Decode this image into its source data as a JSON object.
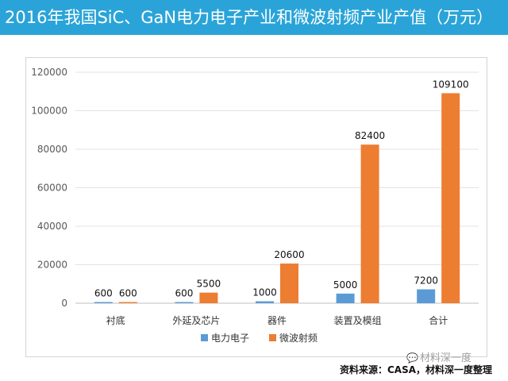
{
  "header": {
    "title": "2016年我国SiC、GaN电力电子产业和微波射频产业产值（万元）"
  },
  "chart_data": {
    "type": "bar",
    "title": "",
    "xlabel": "",
    "ylabel": "",
    "categories": [
      "衬底",
      "外延及芯片",
      "器件",
      "装置及模组",
      "合计"
    ],
    "series": [
      {
        "name": "电力电子",
        "color": "#5b9bd5",
        "values": [
          600,
          600,
          1000,
          5000,
          7200
        ]
      },
      {
        "name": "微波射频",
        "color": "#ed7d31",
        "values": [
          600,
          5500,
          20600,
          82400,
          109100
        ]
      }
    ],
    "ylim": [
      0,
      120000
    ],
    "yticks": [
      0,
      20000,
      40000,
      60000,
      80000,
      100000,
      120000
    ],
    "grid": true,
    "legend": "bottom"
  },
  "watermark": {
    "icon": "wechat-icon",
    "text": "材料深一度"
  },
  "footer": {
    "source": "资料来源：CASA，材料深一度整理"
  }
}
